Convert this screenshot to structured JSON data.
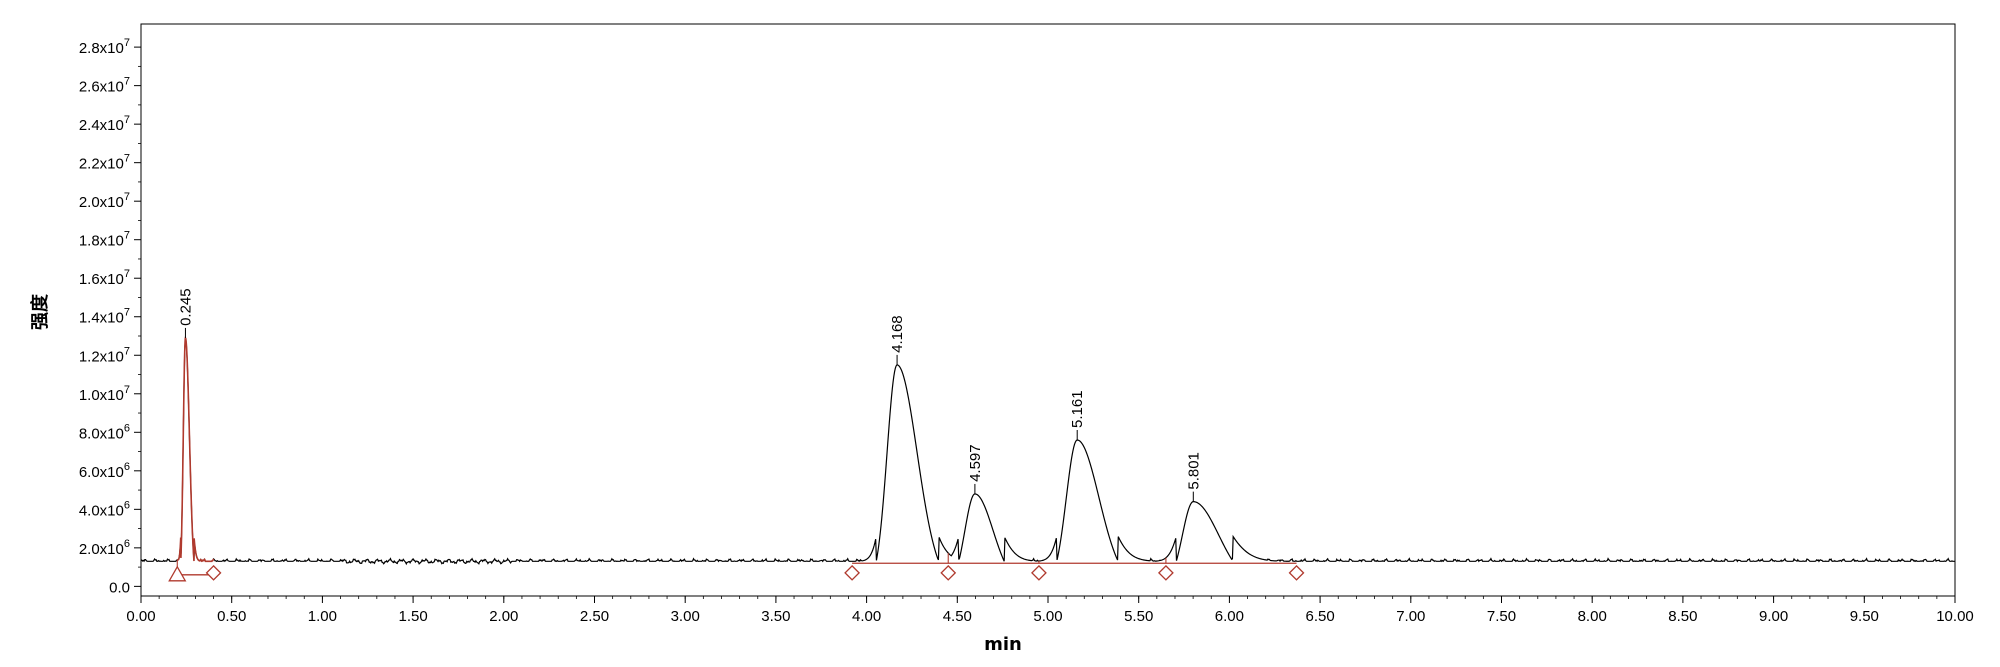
{
  "chart_data": {
    "type": "line",
    "xlabel": "min",
    "ylabel": "强度",
    "xlim": [
      0,
      10
    ],
    "ylim": [
      -500000,
      29200000
    ],
    "grid": false,
    "legend": "none",
    "x_ticks": [
      "0.00",
      "0.50",
      "1.00",
      "1.50",
      "2.00",
      "2.50",
      "3.00",
      "3.50",
      "4.00",
      "4.50",
      "5.00",
      "5.50",
      "6.00",
      "6.50",
      "7.00",
      "7.50",
      "8.00",
      "8.50",
      "9.00",
      "9.50",
      "10.00"
    ],
    "y_ticks": [
      {
        "value": 0,
        "label": "0.0",
        "exp": ""
      },
      {
        "value": 2000000,
        "label": "2.0x10",
        "exp": "6"
      },
      {
        "value": 4000000,
        "label": "4.0x10",
        "exp": "6"
      },
      {
        "value": 6000000,
        "label": "6.0x10",
        "exp": "6"
      },
      {
        "value": 8000000,
        "label": "8.0x10",
        "exp": "6"
      },
      {
        "value": 10000000,
        "label": "1.0x10",
        "exp": "7"
      },
      {
        "value": 12000000,
        "label": "1.2x10",
        "exp": "7"
      },
      {
        "value": 14000000,
        "label": "1.4x10",
        "exp": "7"
      },
      {
        "value": 16000000,
        "label": "1.6x10",
        "exp": "7"
      },
      {
        "value": 18000000,
        "label": "1.8x10",
        "exp": "7"
      },
      {
        "value": 20000000,
        "label": "2.0x10",
        "exp": "7"
      },
      {
        "value": 22000000,
        "label": "2.2x10",
        "exp": "7"
      },
      {
        "value": 24000000,
        "label": "2.4x10",
        "exp": "7"
      },
      {
        "value": 26000000,
        "label": "2.6x10",
        "exp": "7"
      },
      {
        "value": 28000000,
        "label": "2.8x10",
        "exp": "7"
      }
    ],
    "baseline": 1300000,
    "peaks": [
      {
        "label": "0.245",
        "rt": 0.245,
        "height": 12900000,
        "sigma_left": 0.012,
        "sigma_right": 0.022,
        "integration": [
          0.2,
          0.4
        ],
        "highlight": true
      },
      {
        "label": "4.168",
        "rt": 4.168,
        "height": 11500000,
        "sigma_left": 0.055,
        "sigma_right": 0.11,
        "integration": [
          3.92,
          4.45
        ],
        "highlight": false
      },
      {
        "label": "4.597",
        "rt": 4.597,
        "height": 4800000,
        "sigma_left": 0.055,
        "sigma_right": 0.1,
        "integration": [
          4.45,
          4.95
        ],
        "highlight": false
      },
      {
        "label": "5.161",
        "rt": 5.161,
        "height": 7600000,
        "sigma_left": 0.06,
        "sigma_right": 0.12,
        "integration": [
          4.95,
          5.65
        ],
        "highlight": false
      },
      {
        "label": "5.801",
        "rt": 5.801,
        "height": 4400000,
        "sigma_left": 0.06,
        "sigma_right": 0.14,
        "integration": [
          5.65,
          6.37
        ],
        "highlight": false
      }
    ],
    "integration_baselines": [
      {
        "x": [
          0.2,
          0.4
        ],
        "y": 600000
      },
      {
        "x": [
          3.92,
          6.37
        ],
        "y": 1200000
      }
    ],
    "integration_markers": [
      {
        "x": 0.2,
        "shape": "triangle"
      },
      {
        "x": 0.4,
        "shape": "diamond"
      },
      {
        "x": 3.92,
        "shape": "diamond"
      },
      {
        "x": 4.45,
        "shape": "diamond"
      },
      {
        "x": 4.95,
        "shape": "diamond"
      },
      {
        "x": 5.65,
        "shape": "diamond"
      },
      {
        "x": 6.37,
        "shape": "diamond"
      }
    ],
    "colors": {
      "trace": "#000000",
      "integration": "#b03a2e"
    }
  }
}
